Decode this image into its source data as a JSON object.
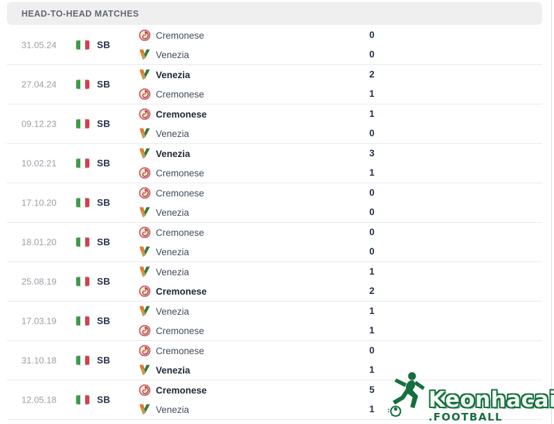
{
  "header": {
    "title": "HEAD-TO-HEAD MATCHES"
  },
  "colors": {
    "watermark_green": "#156f3e",
    "flag_green": "#3d9b4b",
    "flag_red": "#d2404d",
    "score_text": "#222e49"
  },
  "matches": [
    {
      "date": "31.05.24",
      "league": "SB",
      "lines": [
        {
          "team": "Cremonese",
          "score": "0",
          "winner": false
        },
        {
          "team": "Venezia",
          "score": "0",
          "winner": false
        }
      ]
    },
    {
      "date": "27.04.24",
      "league": "SB",
      "lines": [
        {
          "team": "Venezia",
          "score": "2",
          "winner": true
        },
        {
          "team": "Cremonese",
          "score": "1",
          "winner": false
        }
      ]
    },
    {
      "date": "09.12.23",
      "league": "SB",
      "lines": [
        {
          "team": "Cremonese",
          "score": "1",
          "winner": true
        },
        {
          "team": "Venezia",
          "score": "0",
          "winner": false
        }
      ]
    },
    {
      "date": "10.02.21",
      "league": "SB",
      "lines": [
        {
          "team": "Venezia",
          "score": "3",
          "winner": true
        },
        {
          "team": "Cremonese",
          "score": "1",
          "winner": false
        }
      ]
    },
    {
      "date": "17.10.20",
      "league": "SB",
      "lines": [
        {
          "team": "Cremonese",
          "score": "0",
          "winner": false
        },
        {
          "team": "Venezia",
          "score": "0",
          "winner": false
        }
      ]
    },
    {
      "date": "18.01.20",
      "league": "SB",
      "lines": [
        {
          "team": "Cremonese",
          "score": "0",
          "winner": false
        },
        {
          "team": "Venezia",
          "score": "0",
          "winner": false
        }
      ]
    },
    {
      "date": "25.08.19",
      "league": "SB",
      "lines": [
        {
          "team": "Venezia",
          "score": "1",
          "winner": false
        },
        {
          "team": "Cremonese",
          "score": "2",
          "winner": true
        }
      ]
    },
    {
      "date": "17.03.19",
      "league": "SB",
      "lines": [
        {
          "team": "Venezia",
          "score": "1",
          "winner": false
        },
        {
          "team": "Cremonese",
          "score": "1",
          "winner": false
        }
      ]
    },
    {
      "date": "31.10.18",
      "league": "SB",
      "lines": [
        {
          "team": "Cremonese",
          "score": "0",
          "winner": false
        },
        {
          "team": "Venezia",
          "score": "1",
          "winner": true
        }
      ]
    },
    {
      "date": "12.05.18",
      "league": "SB",
      "lines": [
        {
          "team": "Cremonese",
          "score": "5",
          "winner": true
        },
        {
          "team": "Venezia",
          "score": "1",
          "winner": false
        }
      ]
    }
  ],
  "watermark": {
    "brand": "Keonhacai",
    "suffix": ".FOOTBALL"
  }
}
